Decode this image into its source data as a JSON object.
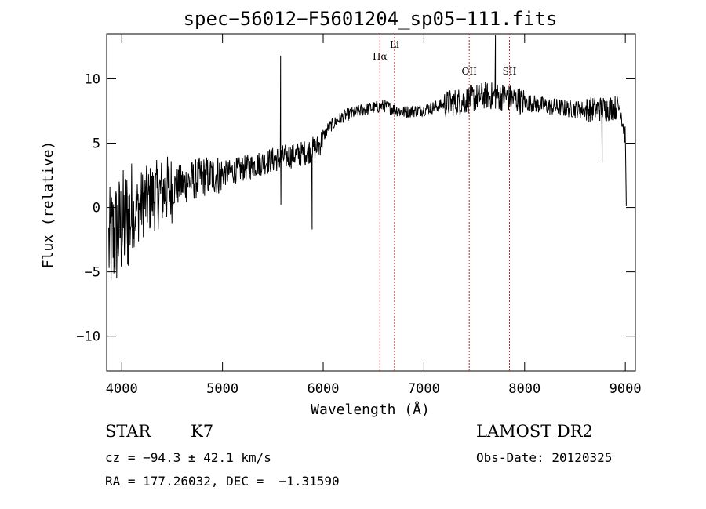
{
  "chart_data": {
    "type": "line",
    "title": "spec−56012−F5601204_sp05−111.fits",
    "xlabel": "Wavelength (Å)",
    "ylabel": "Flux (relative)",
    "xlim": [
      3850,
      9100
    ],
    "ylim": [
      -12.7,
      13.5
    ],
    "x_ticks": [
      {
        "value": 4000,
        "label": "4000"
      },
      {
        "value": 5000,
        "label": "5000"
      },
      {
        "value": 6000,
        "label": "6000"
      },
      {
        "value": 7000,
        "label": "7000"
      },
      {
        "value": 8000,
        "label": "8000"
      },
      {
        "value": 9000,
        "label": "9000"
      }
    ],
    "y_ticks": [
      {
        "value": -10,
        "label": "−10"
      },
      {
        "value": -5,
        "label": "−5"
      },
      {
        "value": 0,
        "label": "0"
      },
      {
        "value": 5,
        "label": "5"
      },
      {
        "value": 10,
        "label": "10"
      }
    ],
    "spectral_lines": [
      {
        "name": "Hα",
        "wavelength": 6563
      },
      {
        "name": "Li",
        "wavelength": 6708
      },
      {
        "name": "OII",
        "wavelength": 7450
      },
      {
        "name": "SII",
        "wavelength": 7850
      }
    ],
    "spectrum_trend": [
      {
        "x": 3870,
        "y": -3
      },
      {
        "x": 3950,
        "y": -2
      },
      {
        "x": 4050,
        "y": -1
      },
      {
        "x": 4200,
        "y": 0.3
      },
      {
        "x": 4400,
        "y": 1.2
      },
      {
        "x": 4600,
        "y": 1.8
      },
      {
        "x": 4800,
        "y": 2.4
      },
      {
        "x": 5000,
        "y": 2.6
      },
      {
        "x": 5200,
        "y": 3.0
      },
      {
        "x": 5400,
        "y": 3.5
      },
      {
        "x": 5600,
        "y": 3.9
      },
      {
        "x": 5800,
        "y": 4.2
      },
      {
        "x": 5950,
        "y": 4.7
      },
      {
        "x": 6050,
        "y": 6.2
      },
      {
        "x": 6200,
        "y": 7.1
      },
      {
        "x": 6400,
        "y": 7.6
      },
      {
        "x": 6600,
        "y": 7.9
      },
      {
        "x": 6800,
        "y": 7.4
      },
      {
        "x": 7000,
        "y": 7.6
      },
      {
        "x": 7200,
        "y": 8.0
      },
      {
        "x": 7400,
        "y": 8.3
      },
      {
        "x": 7600,
        "y": 8.7
      },
      {
        "x": 7800,
        "y": 8.6
      },
      {
        "x": 8000,
        "y": 8.2
      },
      {
        "x": 8200,
        "y": 7.9
      },
      {
        "x": 8400,
        "y": 7.7
      },
      {
        "x": 8600,
        "y": 7.6
      },
      {
        "x": 8800,
        "y": 7.7
      },
      {
        "x": 8950,
        "y": 7.8
      },
      {
        "x": 9000,
        "y": 5.5
      }
    ],
    "spikes": [
      {
        "x": 5577,
        "y": 11.8
      },
      {
        "x": 5580,
        "y": 0.2
      },
      {
        "x": 5890,
        "y": -1.7
      },
      {
        "x": 5895,
        "y": 5.0
      },
      {
        "x": 7710,
        "y": 13.4
      },
      {
        "x": 7715,
        "y": 9.2
      },
      {
        "x": 8770,
        "y": 3.5
      },
      {
        "x": 9010,
        "y": 0.1
      }
    ]
  },
  "info": {
    "object_class": "STAR",
    "subclass": "K7",
    "survey": "LAMOST DR2",
    "cz": "cz = −94.3 ± 42.1 km/s",
    "obs_date": "Obs-Date: 20120325",
    "coords": "RA = 177.26032, DEC =  −1.31590"
  },
  "colors": {
    "spectrum": "#000000",
    "spectral_line": "#cc2222"
  }
}
